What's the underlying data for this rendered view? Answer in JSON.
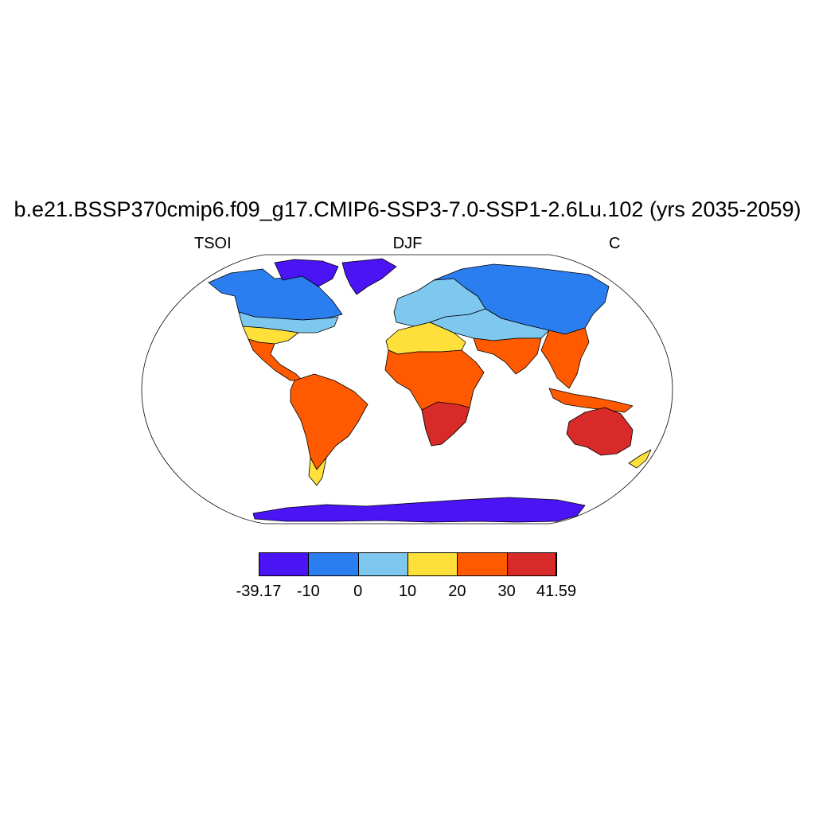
{
  "title": "b.e21.BSSP370cmip6.f09_g17.CMIP6-SSP3-7.0-SSP1-2.6Lu.102 (yrs 2035-2059)",
  "left_string": "TSOI",
  "center_string": "DJF",
  "right_string": "C",
  "colorbar": {
    "colors": [
      "#4a14f5",
      "#2b7ef0",
      "#7ec7ef",
      "#ffdf3a",
      "#ff5a00",
      "#d82a28"
    ],
    "labels": [
      "-39.17",
      "-10",
      "0",
      "10",
      "20",
      "30",
      "41.59"
    ]
  },
  "map": {
    "projection": "Robinson",
    "ocean_color": "#ffffff",
    "regions": [
      {
        "name": "north-america-arctic",
        "color": "#4a14f5"
      },
      {
        "name": "north-america-north",
        "color": "#2b7ef0"
      },
      {
        "name": "north-america-mid",
        "color": "#7ec7ef"
      },
      {
        "name": "north-america-south",
        "color": "#ffdf3a"
      },
      {
        "name": "central-america",
        "color": "#ff5a00"
      },
      {
        "name": "south-america",
        "color": "#ff5a00"
      },
      {
        "name": "south-america-south",
        "color": "#ffdf3a"
      },
      {
        "name": "greenland",
        "color": "#4a14f5"
      },
      {
        "name": "europe",
        "color": "#7ec7ef"
      },
      {
        "name": "north-africa",
        "color": "#ffdf3a"
      },
      {
        "name": "africa",
        "color": "#ff5a00"
      },
      {
        "name": "southern-africa",
        "color": "#d82a28"
      },
      {
        "name": "siberia",
        "color": "#2b7ef0"
      },
      {
        "name": "central-asia",
        "color": "#7ec7ef"
      },
      {
        "name": "south-asia",
        "color": "#ff5a00"
      },
      {
        "name": "southeast-asia",
        "color": "#ff5a00"
      },
      {
        "name": "australia",
        "color": "#d82a28"
      },
      {
        "name": "new-zealand",
        "color": "#ffdf3a"
      },
      {
        "name": "antarctica",
        "color": "#4a14f5"
      }
    ]
  }
}
